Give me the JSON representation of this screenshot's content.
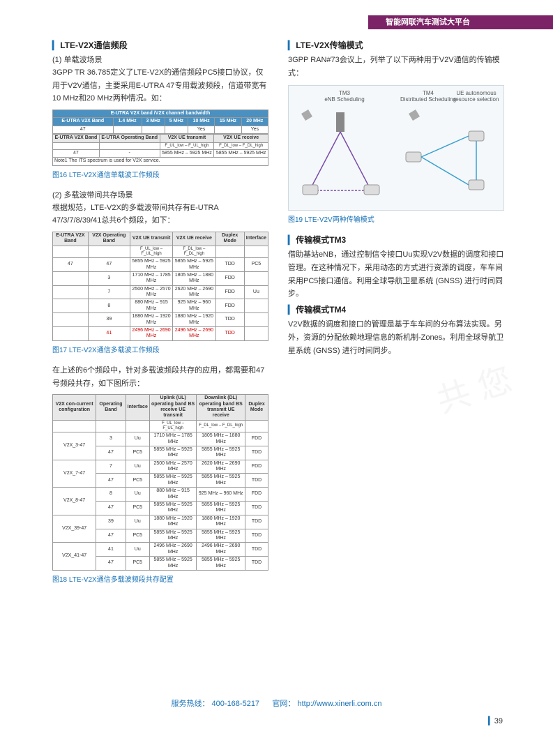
{
  "header": {
    "title": "智能网联汽车测试大平台"
  },
  "left": {
    "sec1_title": "LTE-V2X通信频段",
    "sub1": "(1) 单载波场景",
    "p1": "3GPP TR 36.785定义了LTE-V2X的通信频段PC5接口协议，仅用于V2V通信，主要采用E-UTRA 47专用载波频段，信道带宽有10 MHz和20 MHz两种情况。如：",
    "t16": {
      "h": [
        "E-UTRA V2X Band",
        "1.4 MHz",
        "3 MHz",
        "5 MHz",
        "10 MHz",
        "15 MHz",
        "20 MHz"
      ],
      "title": "E-UTRA V2X band /V2X channel bandwidth",
      "r1": [
        "47",
        "",
        "",
        "",
        "Yes",
        "",
        "Yes"
      ],
      "h2": [
        "E-UTRA V2X Band",
        "E-UTRA Operating Band",
        "V2X UE transmit",
        "V2X UE receive"
      ],
      "sub2": [
        "",
        "",
        "F_UL_low – F_UL_high",
        "F_DL_low – F_DL_high"
      ],
      "r2": [
        "47",
        "-",
        "5855 MHz – 5925 MHz",
        "5855 MHz – 5925 MHz"
      ],
      "note": "Note1  The ITS spectrum is used for V2X service."
    },
    "cap16": "图16 LTE-V2X通信单载波工作频段",
    "sub2": "(2) 多载波带间共存场景",
    "p2": "根据规范，LTE-V2X的多载波带间共存有E-UTRA 47/3/7/8/39/41总共6个频段，如下：",
    "t17": {
      "h": [
        "E-UTRA V2X Band",
        "V2X Operating Band",
        "V2X UE transmit",
        "V2X UE receive",
        "Duplex Mode",
        "Interface"
      ],
      "sub": [
        "",
        "",
        "F_UL_low – F_UL_high",
        "F_DL_low – F_DL_high",
        "",
        ""
      ],
      "rows": [
        [
          "47",
          "47",
          "5855 MHz – 5925 MHz",
          "5855 MHz – 5925 MHz",
          "TDD",
          "PC5"
        ],
        [
          "",
          "3",
          "1710 MHz – 1785 MHz",
          "1805 MHz – 1880 MHz",
          "FDD",
          ""
        ],
        [
          "",
          "7",
          "2500 MHz – 2570 MHz",
          "2620 MHz – 2690 MHz",
          "FDD",
          "Uu"
        ],
        [
          "",
          "8",
          "880 MHz – 915 MHz",
          "925 MHz – 960 MHz",
          "FDD",
          ""
        ],
        [
          "",
          "39",
          "1880 MHz – 1920 MHz",
          "1880 MHz – 1920 MHz",
          "TDD",
          ""
        ],
        [
          "",
          "41",
          "2496 MHz – 2690 MHz",
          "2496 MHz – 2690 MHz",
          "TDD",
          ""
        ]
      ]
    },
    "cap17": "图17 LTE-V2X通信多载波工作频段",
    "p3": "在上述的6个频段中，针对多载波频段共存的应用，都需要和47号频段共存，如下图所示：",
    "t18": {
      "h": [
        "V2X con-current configuration",
        "Operating Band",
        "Interface",
        "Uplink (UL) operating band BS receive UE transmit",
        "Downlink (DL) operating band BS transmit UE receive",
        "Duplex Mode"
      ],
      "sub": [
        "",
        "",
        "",
        "F_UL_low – F_UL_high",
        "F_DL_low – F_DL_high",
        ""
      ],
      "groups": [
        {
          "name": "V2X_3-47",
          "rows": [
            [
              "3",
              "Uu",
              "1710 MHz – 1785 MHz",
              "1805 MHz – 1880 MHz",
              "FDD"
            ],
            [
              "47",
              "PC5",
              "5855 MHz – 5925 MHz",
              "5855 MHz – 5925 MHz",
              "TDD"
            ]
          ]
        },
        {
          "name": "V2X_7-47",
          "rows": [
            [
              "7",
              "Uu",
              "2500 MHz – 2570 MHz",
              "2620 MHz – 2690 MHz",
              "FDD"
            ],
            [
              "47",
              "PC5",
              "5855 MHz – 5925 MHz",
              "5855 MHz – 5925 MHz",
              "TDD"
            ]
          ]
        },
        {
          "name": "V2X_8-47",
          "rows": [
            [
              "8",
              "Uu",
              "880 MHz – 915 MHz",
              "925 MHz – 960 MHz",
              "FDD"
            ],
            [
              "47",
              "PC5",
              "5855 MHz – 5925 MHz",
              "5855 MHz – 5925 MHz",
              "TDD"
            ]
          ]
        },
        {
          "name": "V2X_39-47",
          "rows": [
            [
              "39",
              "Uu",
              "1880 MHz – 1920 MHz",
              "1880 MHz – 1920 MHz",
              "TDD"
            ],
            [
              "47",
              "PC5",
              "5855 MHz – 5925 MHz",
              "5855 MHz – 5925 MHz",
              "TDD"
            ]
          ]
        },
        {
          "name": "V2X_41-47",
          "rows": [
            [
              "41",
              "Uu",
              "2496 MHz – 2690 MHz",
              "2496 MHz – 2690 MHz",
              "TDD"
            ],
            [
              "47",
              "PC5",
              "5855 MHz – 5925 MHz",
              "5855 MHz – 5925 MHz",
              "TDD"
            ]
          ]
        }
      ]
    },
    "cap18": "图18 LTE-V2X通信多载波频段共存配置"
  },
  "right": {
    "sec2_title": "LTE-V2X传输模式",
    "p1": "3GPP RAN#73会议上，列举了以下两种用于V2V通信的传输模式：",
    "fig19": {
      "lbl1": "TM3\neNB Scheduling",
      "lbl2": "TM4\nDistributed Scheduling",
      "lbl3": "UE autonomous resource selection",
      "bg": "#f0f4f9",
      "line_color": "#7b4ba8",
      "line_color2": "#3aa0d0"
    },
    "cap19": "图19 LTE-V2V两种传输模式",
    "tm3_title": "传输模式TM3",
    "tm3_p": "借助基站eNB，通过控制信令接口Uu实现V2V数据的调度和接口管理。在这种情况下，采用动态的方式进行资源的调度，车车间采用PC5接口通信。利用全球导航卫星系统 (GNSS) 进行时间同步。",
    "tm4_title": "传输模式TM4",
    "tm4_p": "V2V数据的调度和接口的管理是基于车车间的分布算法实现。另外，资源的分配依赖地理信息的新机制-Zones。利用全球导航卫星系统 (GNSS) 进行时间同步。"
  },
  "footer": {
    "hotline_lbl": "服务热线：",
    "hotline": "400-168-5217",
    "site_lbl": "官网：",
    "site": "http://www.xinerli.com.cn"
  },
  "page": "39"
}
